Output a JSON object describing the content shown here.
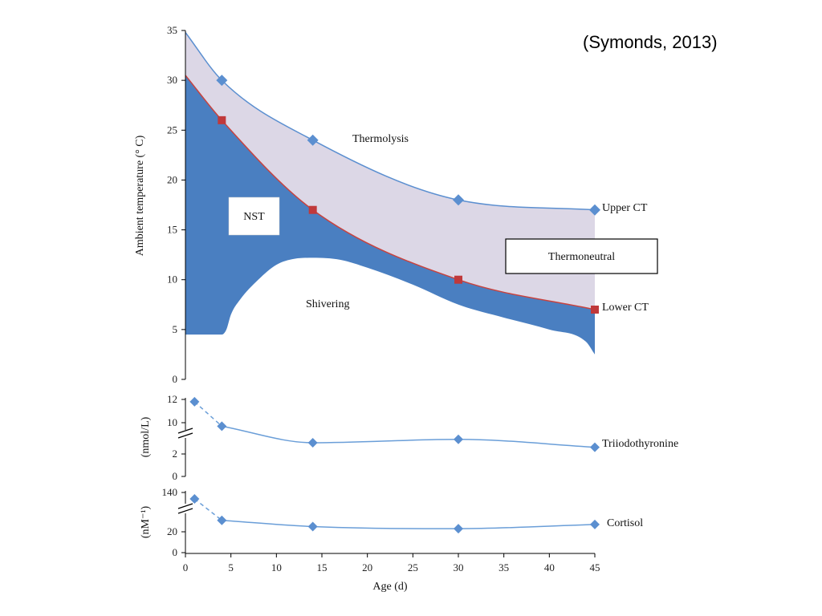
{
  "citation": "(Symonds, 2013)",
  "colors": {
    "nst_fill": "#4a7fc1",
    "thermoneutral_fill": "#dcd7e6",
    "upper_line": "#5b8fd0",
    "lower_line": "#c8433f",
    "marker_blue": "#5b8fd0",
    "marker_red": "#c0393b",
    "hormone_line": "#6a9ed8"
  },
  "chart_data": [
    {
      "type": "area",
      "xlabel": "Age (d)",
      "ylabel": "Ambient temperature (° C)",
      "xlim": [
        0,
        45
      ],
      "ylim": [
        0,
        35
      ],
      "x_ticks": [
        "0",
        "5",
        "10",
        "15",
        "20",
        "25",
        "30",
        "35",
        "40",
        "45"
      ],
      "y_ticks": [
        "0",
        "5",
        "10",
        "15",
        "20",
        "25",
        "30",
        "35"
      ],
      "series": [
        {
          "name": "Upper CT",
          "marker": "diamond",
          "x": [
            4,
            14,
            30,
            45
          ],
          "y": [
            30,
            24,
            18,
            17
          ]
        },
        {
          "name": "Lower CT",
          "marker": "square",
          "x": [
            4,
            14,
            30,
            45
          ],
          "y": [
            26,
            17,
            10,
            7
          ]
        }
      ],
      "upper_curve": {
        "x": [
          0,
          4,
          14,
          30,
          45
        ],
        "y": [
          34.8,
          30,
          24,
          18,
          17
        ]
      },
      "lower_curve": {
        "x": [
          0,
          4,
          14,
          30,
          45
        ],
        "y": [
          30.5,
          26,
          17,
          10,
          7
        ]
      },
      "shivering_boundary": {
        "x": [
          0,
          4,
          4.5,
          5,
          6,
          8,
          10,
          12,
          14,
          17,
          20,
          25,
          30,
          35,
          40,
          44,
          45
        ],
        "y": [
          4.5,
          4.5,
          5,
          6.5,
          8,
          10,
          11.5,
          12.1,
          12.2,
          12,
          11.2,
          9.5,
          7.5,
          6.2,
          5,
          3.8,
          2.5
        ]
      },
      "annotations": {
        "thermolysis": "Thermolysis",
        "nst": "NST",
        "shivering": "Shivering",
        "thermoneutral": "Thermoneutral",
        "upper_ct": "Upper CT",
        "lower_ct": "Lower CT"
      }
    },
    {
      "type": "line",
      "ylabel": "(nmol/L)",
      "y_ticks": [
        "0",
        "2",
        "10",
        "12"
      ],
      "axis_break": true,
      "series": [
        {
          "name": "Triiodothyronine",
          "x": [
            1,
            4,
            14,
            30,
            45
          ],
          "y": [
            11.8,
            9.7,
            3.0,
            3.3,
            2.6
          ]
        }
      ]
    },
    {
      "type": "line",
      "ylabel": "(nM⁻¹)",
      "y_ticks": [
        "0",
        "20",
        "140"
      ],
      "axis_break": true,
      "series": [
        {
          "name": "Cortisol",
          "x": [
            1,
            4,
            14,
            30,
            45
          ],
          "y": [
            135,
            31,
            25,
            23,
            27
          ]
        }
      ]
    }
  ]
}
